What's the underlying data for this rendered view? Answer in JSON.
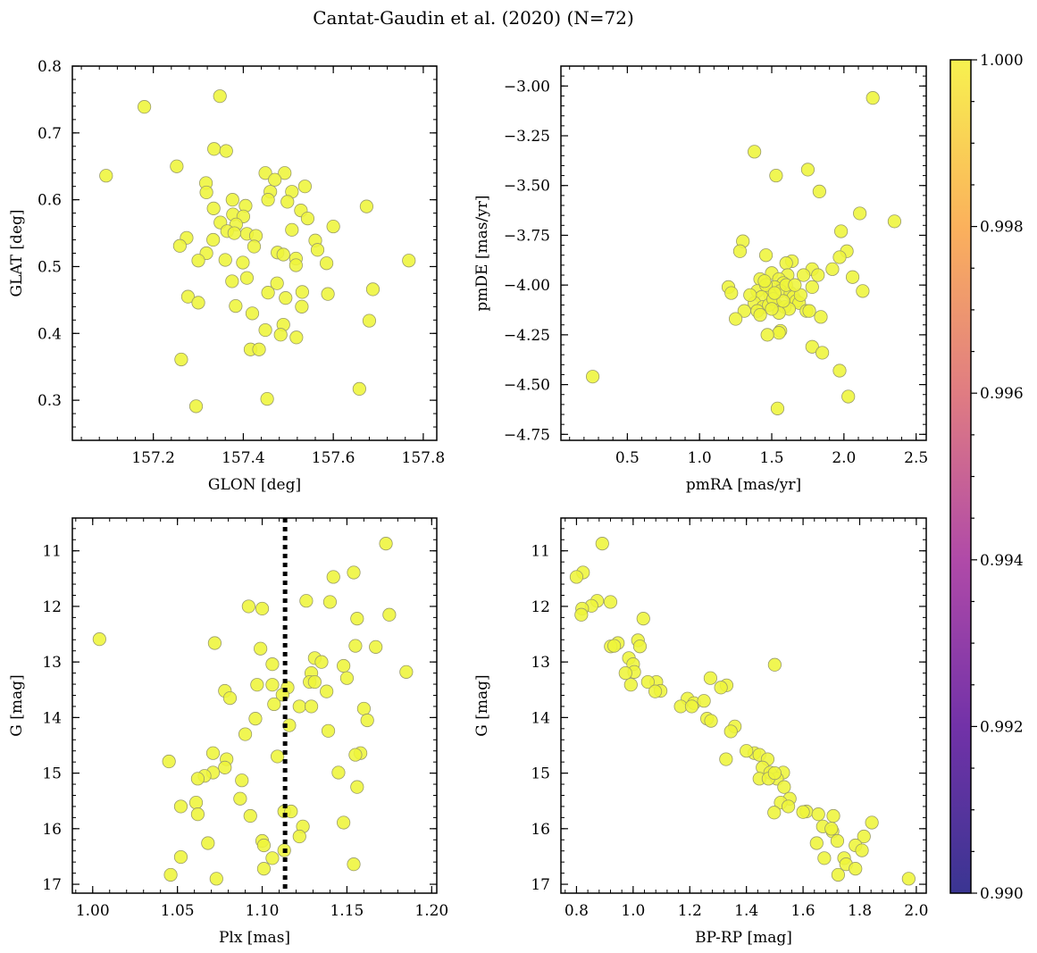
{
  "figure_title": "Cantat-Gaudin et al. (2020) (N=72)",
  "chart_data": [
    {
      "type": "scatter",
      "panel": "top-left",
      "xlabel": "GLON [deg]",
      "ylabel": "GLAT [deg]",
      "xlim": [
        157.02,
        157.83
      ],
      "ylim": [
        0.24,
        0.8
      ],
      "y_inverted": false,
      "xticks": [
        157.2,
        157.4,
        157.6,
        157.8
      ],
      "xtick_labels": [
        "157.2",
        "157.4",
        "157.6",
        "157.8"
      ],
      "yticks": [
        0.3,
        0.4,
        0.5,
        0.6,
        0.7,
        0.8
      ],
      "ytick_labels": [
        "0.3",
        "0.4",
        "0.5",
        "0.6",
        "0.7",
        "0.8"
      ],
      "points": [
        [
          157.095,
          0.636
        ],
        [
          157.18,
          0.739
        ],
        [
          157.348,
          0.755
        ],
        [
          157.252,
          0.65
        ],
        [
          157.335,
          0.676
        ],
        [
          157.362,
          0.673
        ],
        [
          157.449,
          0.64
        ],
        [
          157.492,
          0.64
        ],
        [
          157.317,
          0.625
        ],
        [
          157.318,
          0.611
        ],
        [
          157.46,
          0.612
        ],
        [
          157.508,
          0.612
        ],
        [
          157.537,
          0.62
        ],
        [
          157.674,
          0.59
        ],
        [
          157.376,
          0.6
        ],
        [
          157.455,
          0.6
        ],
        [
          157.498,
          0.597
        ],
        [
          157.405,
          0.591
        ],
        [
          157.334,
          0.587
        ],
        [
          157.528,
          0.584
        ],
        [
          157.377,
          0.578
        ],
        [
          157.4,
          0.575
        ],
        [
          157.543,
          0.572
        ],
        [
          157.349,
          0.566
        ],
        [
          157.384,
          0.563
        ],
        [
          157.364,
          0.553
        ],
        [
          157.38,
          0.55
        ],
        [
          157.408,
          0.549
        ],
        [
          157.428,
          0.546
        ],
        [
          157.508,
          0.555
        ],
        [
          157.274,
          0.543
        ],
        [
          157.333,
          0.54
        ],
        [
          157.56,
          0.539
        ],
        [
          157.259,
          0.531
        ],
        [
          157.424,
          0.53
        ],
        [
          157.565,
          0.525
        ],
        [
          157.318,
          0.52
        ],
        [
          157.476,
          0.521
        ],
        [
          157.489,
          0.518
        ],
        [
          157.517,
          0.512
        ],
        [
          157.3,
          0.509
        ],
        [
          157.399,
          0.506
        ],
        [
          157.517,
          0.502
        ],
        [
          157.585,
          0.505
        ],
        [
          157.768,
          0.509
        ],
        [
          157.408,
          0.483
        ],
        [
          157.375,
          0.478
        ],
        [
          157.475,
          0.475
        ],
        [
          157.688,
          0.466
        ],
        [
          157.455,
          0.461
        ],
        [
          157.531,
          0.462
        ],
        [
          157.588,
          0.459
        ],
        [
          157.277,
          0.455
        ],
        [
          157.494,
          0.453
        ],
        [
          157.3,
          0.446
        ],
        [
          157.383,
          0.441
        ],
        [
          157.68,
          0.419
        ],
        [
          157.489,
          0.413
        ],
        [
          157.449,
          0.405
        ],
        [
          157.483,
          0.398
        ],
        [
          157.518,
          0.394
        ],
        [
          157.416,
          0.376
        ],
        [
          157.435,
          0.376
        ],
        [
          157.262,
          0.361
        ],
        [
          157.658,
          0.317
        ],
        [
          157.453,
          0.302
        ],
        [
          157.295,
          0.291
        ],
        [
          157.6,
          0.56
        ],
        [
          157.47,
          0.63
        ],
        [
          157.42,
          0.43
        ],
        [
          157.36,
          0.51
        ],
        [
          157.53,
          0.44
        ]
      ]
    },
    {
      "type": "scatter",
      "panel": "top-right",
      "xlabel": "pmRA [mas/yr]",
      "ylabel": "pmDE [mas/yr]",
      "xlim": [
        0.04,
        2.57
      ],
      "ylim": [
        -4.78,
        -2.9
      ],
      "y_inverted": false,
      "xticks": [
        0.5,
        1.0,
        1.5,
        2.0,
        2.5
      ],
      "xtick_labels": [
        "0.5",
        "1.0",
        "1.5",
        "2.0",
        "2.5"
      ],
      "yticks": [
        -3.0,
        -3.25,
        -3.5,
        -3.75,
        -4.0,
        -4.25,
        -4.5,
        -4.75
      ],
      "ytick_labels": [
        "−3.00",
        "−3.25",
        "−3.50",
        "−3.75",
        "−4.00",
        "−4.25",
        "−4.50",
        "−4.75"
      ],
      "points": [
        [
          2.2,
          -3.06
        ],
        [
          1.38,
          -3.33
        ],
        [
          1.75,
          -3.42
        ],
        [
          1.53,
          -3.45
        ],
        [
          1.83,
          -3.53
        ],
        [
          2.11,
          -3.64
        ],
        [
          2.35,
          -3.68
        ],
        [
          1.98,
          -3.73
        ],
        [
          1.3,
          -3.78
        ],
        [
          2.02,
          -3.83
        ],
        [
          1.28,
          -3.83
        ],
        [
          1.46,
          -3.85
        ],
        [
          1.97,
          -3.86
        ],
        [
          1.64,
          -3.88
        ],
        [
          1.6,
          -3.89
        ],
        [
          1.78,
          -3.92
        ],
        [
          1.92,
          -3.92
        ],
        [
          1.5,
          -3.94
        ],
        [
          1.61,
          -3.95
        ],
        [
          1.72,
          -3.95
        ],
        [
          1.82,
          -3.95
        ],
        [
          2.06,
          -3.96
        ],
        [
          1.42,
          -3.97
        ],
        [
          1.55,
          -3.97
        ],
        [
          1.58,
          -3.99
        ],
        [
          1.2,
          -4.01
        ],
        [
          1.78,
          -4.01
        ],
        [
          2.13,
          -4.03
        ],
        [
          1.47,
          -4.02
        ],
        [
          1.52,
          -4.01
        ],
        [
          1.4,
          -4.03
        ],
        [
          1.56,
          -4.03
        ],
        [
          1.63,
          -4.04
        ],
        [
          1.22,
          -4.04
        ],
        [
          1.49,
          -4.05
        ],
        [
          1.43,
          -4.06
        ],
        [
          1.65,
          -4.06
        ],
        [
          1.67,
          -4.08
        ],
        [
          1.38,
          -4.09
        ],
        [
          1.69,
          -4.09
        ],
        [
          1.53,
          -4.1
        ],
        [
          1.44,
          -4.11
        ],
        [
          1.48,
          -4.1
        ],
        [
          1.59,
          -4.11
        ],
        [
          1.62,
          -4.12
        ],
        [
          1.74,
          -4.13
        ],
        [
          1.31,
          -4.13
        ],
        [
          1.4,
          -4.13
        ],
        [
          1.76,
          -4.13
        ],
        [
          1.55,
          -4.14
        ],
        [
          1.42,
          -4.15
        ],
        [
          1.84,
          -4.16
        ],
        [
          1.25,
          -4.17
        ],
        [
          1.56,
          -4.23
        ],
        [
          1.55,
          -4.24
        ],
        [
          1.47,
          -4.25
        ],
        [
          1.78,
          -4.31
        ],
        [
          1.85,
          -4.34
        ],
        [
          1.97,
          -4.43
        ],
        [
          0.26,
          -4.46
        ],
        [
          2.03,
          -4.56
        ],
        [
          1.54,
          -4.62
        ],
        [
          1.6,
          -4.0
        ],
        [
          1.51,
          -4.07
        ],
        [
          1.46,
          -4.0
        ],
        [
          1.7,
          -4.05
        ],
        [
          1.35,
          -4.05
        ],
        [
          1.45,
          -3.98
        ],
        [
          1.58,
          -4.08
        ],
        [
          1.66,
          -4.0
        ],
        [
          1.52,
          -4.04
        ],
        [
          1.5,
          -4.12
        ]
      ]
    },
    {
      "type": "scatter",
      "panel": "bottom-left",
      "xlabel": "Plx [mas]",
      "ylabel": "G [mag]",
      "xlim": [
        0.988,
        1.203
      ],
      "ylim": [
        10.41,
        17.16
      ],
      "y_inverted": true,
      "xticks": [
        1.0,
        1.05,
        1.1,
        1.15,
        1.2
      ],
      "xtick_labels": [
        "1.00",
        "1.05",
        "1.10",
        "1.15",
        "1.20"
      ],
      "yticks": [
        11,
        12,
        13,
        14,
        15,
        16,
        17
      ],
      "ytick_labels": [
        "11",
        "12",
        "13",
        "14",
        "15",
        "16",
        "17"
      ],
      "vline": {
        "x": 1.1135,
        "style": "dotted",
        "color": "#000000"
      },
      "points": [
        [
          1.173,
          10.87
        ],
        [
          1.154,
          11.39
        ],
        [
          1.142,
          11.47
        ],
        [
          1.126,
          11.9
        ],
        [
          1.14,
          11.92
        ],
        [
          1.092,
          12.0
        ],
        [
          1.1,
          12.04
        ],
        [
          1.175,
          12.15
        ],
        [
          1.156,
          12.22
        ],
        [
          1.004,
          12.59
        ],
        [
          1.072,
          12.66
        ],
        [
          1.155,
          12.71
        ],
        [
          1.099,
          12.76
        ],
        [
          1.167,
          12.73
        ],
        [
          1.131,
          12.93
        ],
        [
          1.106,
          13.04
        ],
        [
          1.148,
          13.07
        ],
        [
          1.185,
          13.18
        ],
        [
          1.129,
          13.2
        ],
        [
          1.15,
          13.29
        ],
        [
          1.128,
          13.36
        ],
        [
          1.131,
          13.36
        ],
        [
          1.097,
          13.41
        ],
        [
          1.106,
          13.41
        ],
        [
          1.115,
          13.46
        ],
        [
          1.078,
          13.52
        ],
        [
          1.138,
          13.53
        ],
        [
          1.112,
          13.59
        ],
        [
          1.081,
          13.65
        ],
        [
          1.107,
          13.76
        ],
        [
          1.122,
          13.8
        ],
        [
          1.129,
          13.8
        ],
        [
          1.16,
          13.84
        ],
        [
          1.162,
          14.05
        ],
        [
          1.096,
          14.02
        ],
        [
          1.116,
          14.14
        ],
        [
          1.139,
          14.24
        ],
        [
          1.071,
          14.64
        ],
        [
          1.158,
          14.64
        ],
        [
          1.109,
          14.7
        ],
        [
          1.155,
          14.67
        ],
        [
          1.045,
          14.79
        ],
        [
          1.079,
          14.75
        ],
        [
          1.078,
          14.9
        ],
        [
          1.071,
          14.99
        ],
        [
          1.145,
          14.99
        ],
        [
          1.066,
          15.05
        ],
        [
          1.062,
          15.1
        ],
        [
          1.088,
          15.13
        ],
        [
          1.156,
          15.25
        ],
        [
          1.087,
          15.46
        ],
        [
          1.061,
          15.53
        ],
        [
          1.052,
          15.6
        ],
        [
          1.113,
          15.69
        ],
        [
          1.117,
          15.69
        ],
        [
          1.062,
          15.74
        ],
        [
          1.093,
          15.77
        ],
        [
          1.148,
          15.89
        ],
        [
          1.124,
          15.96
        ],
        [
          1.122,
          16.14
        ],
        [
          1.1,
          16.22
        ],
        [
          1.101,
          16.3
        ],
        [
          1.068,
          16.26
        ],
        [
          1.113,
          16.39
        ],
        [
          1.106,
          16.53
        ],
        [
          1.052,
          16.51
        ],
        [
          1.154,
          16.64
        ],
        [
          1.101,
          16.72
        ],
        [
          1.046,
          16.83
        ],
        [
          1.073,
          16.9
        ],
        [
          1.135,
          13.0
        ],
        [
          1.09,
          14.3
        ]
      ]
    },
    {
      "type": "scatter",
      "panel": "bottom-right",
      "xlabel": "BP-RP [mag]",
      "ylabel": "G [mag]",
      "xlim": [
        0.745,
        2.035
      ],
      "ylim": [
        10.41,
        17.16
      ],
      "y_inverted": true,
      "xticks": [
        0.8,
        1.0,
        1.2,
        1.4,
        1.6,
        1.8,
        2.0
      ],
      "xtick_labels": [
        "0.8",
        "1.0",
        "1.2",
        "1.4",
        "1.6",
        "1.8",
        "2.0"
      ],
      "yticks": [
        11,
        12,
        13,
        14,
        15,
        16,
        17
      ],
      "ytick_labels": [
        "11",
        "12",
        "13",
        "14",
        "15",
        "16",
        "17"
      ],
      "points": [
        [
          0.891,
          10.87
        ],
        [
          0.823,
          11.39
        ],
        [
          0.8,
          11.47
        ],
        [
          0.873,
          11.9
        ],
        [
          0.92,
          11.92
        ],
        [
          0.853,
          11.99
        ],
        [
          0.82,
          12.04
        ],
        [
          0.817,
          12.15
        ],
        [
          1.036,
          12.22
        ],
        [
          1.017,
          12.61
        ],
        [
          0.946,
          12.66
        ],
        [
          1.024,
          12.72
        ],
        [
          0.921,
          12.72
        ],
        [
          0.933,
          12.71
        ],
        [
          0.985,
          12.93
        ],
        [
          1.0,
          13.04
        ],
        [
          1.5,
          13.05
        ],
        [
          1.004,
          13.18
        ],
        [
          0.973,
          13.2
        ],
        [
          1.273,
          13.29
        ],
        [
          1.082,
          13.36
        ],
        [
          1.052,
          13.36
        ],
        [
          1.33,
          13.42
        ],
        [
          0.992,
          13.41
        ],
        [
          1.31,
          13.46
        ],
        [
          1.097,
          13.52
        ],
        [
          1.078,
          13.53
        ],
        [
          1.192,
          13.66
        ],
        [
          1.215,
          13.74
        ],
        [
          1.168,
          13.8
        ],
        [
          1.207,
          13.8
        ],
        [
          1.261,
          14.02
        ],
        [
          1.275,
          14.06
        ],
        [
          1.359,
          14.16
        ],
        [
          1.345,
          14.25
        ],
        [
          1.428,
          14.64
        ],
        [
          1.446,
          14.67
        ],
        [
          1.475,
          14.75
        ],
        [
          1.328,
          14.75
        ],
        [
          1.457,
          14.9
        ],
        [
          1.53,
          14.99
        ],
        [
          1.484,
          14.99
        ],
        [
          1.508,
          15.1
        ],
        [
          1.446,
          15.1
        ],
        [
          1.478,
          15.1
        ],
        [
          1.533,
          15.25
        ],
        [
          1.553,
          15.46
        ],
        [
          1.521,
          15.53
        ],
        [
          1.548,
          15.6
        ],
        [
          1.612,
          15.69
        ],
        [
          1.498,
          15.71
        ],
        [
          1.707,
          15.77
        ],
        [
          1.654,
          15.74
        ],
        [
          1.843,
          15.89
        ],
        [
          1.67,
          15.96
        ],
        [
          1.704,
          16.05
        ],
        [
          1.721,
          16.22
        ],
        [
          1.815,
          16.14
        ],
        [
          1.648,
          16.26
        ],
        [
          1.785,
          16.3
        ],
        [
          1.808,
          16.39
        ],
        [
          1.675,
          16.53
        ],
        [
          1.745,
          16.53
        ],
        [
          1.752,
          16.64
        ],
        [
          1.785,
          16.72
        ],
        [
          1.724,
          16.83
        ],
        [
          1.973,
          16.9
        ],
        [
          1.25,
          13.7
        ],
        [
          1.4,
          14.6
        ],
        [
          1.6,
          15.7
        ],
        [
          1.5,
          15.0
        ],
        [
          1.7,
          16.0
        ]
      ]
    }
  ],
  "colorbar": {
    "min": 0.99,
    "max": 1.0,
    "ticks": [
      0.99,
      0.992,
      0.994,
      0.996,
      0.998,
      1.0
    ],
    "tick_labels": [
      "0.990",
      "0.992",
      "0.994",
      "0.996",
      "0.998",
      "1.000"
    ],
    "colormap": "plasma"
  },
  "marker_color": "#eef53a",
  "marker_edge_color": "#9a9c6a"
}
